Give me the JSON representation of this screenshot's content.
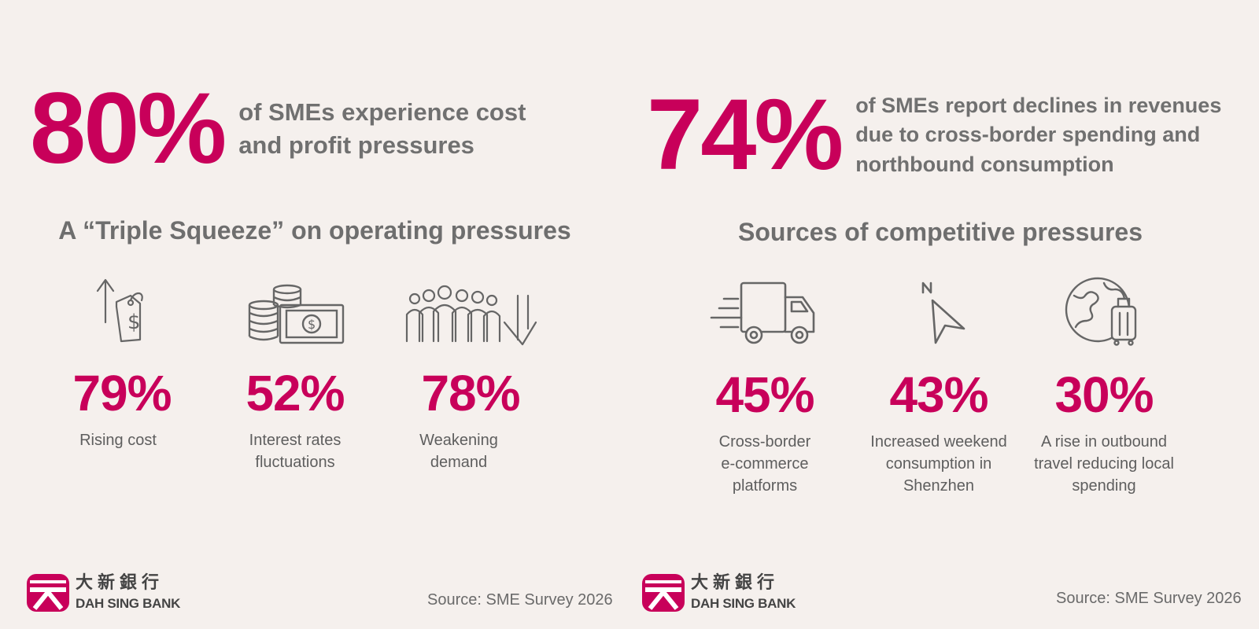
{
  "left": {
    "headline": {
      "pct": "80%",
      "text": "of SMEs experience cost\nand profit pressures"
    },
    "section_title": "A “Triple Squeeze” on operating pressures",
    "stats": [
      {
        "pct": "79%",
        "label": "Rising cost",
        "icon": "price-tag-up-icon"
      },
      {
        "pct": "52%",
        "label": "Interest rates\nfluctuations",
        "icon": "coins-cash-icon"
      },
      {
        "pct": "78%",
        "label": "Weakening\ndemand",
        "icon": "crowd-down-icon"
      }
    ],
    "logo": {
      "cn": "大新銀行",
      "en": "DAH SING BANK"
    },
    "source": "Source: SME Survey 2026"
  },
  "right": {
    "headline": {
      "pct": "74%",
      "text": "of SMEs report declines in revenues\ndue to cross-border spending and\nnorthbound consumption"
    },
    "section_title": "Sources of competitive pressures",
    "stats": [
      {
        "pct": "45%",
        "label": "Cross-border\ne-commerce\nplatforms",
        "icon": "delivery-truck-icon"
      },
      {
        "pct": "43%",
        "label": "Increased weekend\nconsumption in\nShenzhen",
        "icon": "north-arrow-icon"
      },
      {
        "pct": "30%",
        "label": "A rise in outbound\ntravel reducing local\nspending",
        "icon": "globe-luggage-icon"
      }
    ],
    "logo": {
      "cn": "大新銀行",
      "en": "DAH SING BANK"
    },
    "source": "Source: SME Survey 2026"
  },
  "colors": {
    "accent": "#c8005a",
    "text": "#6b6b6b",
    "background": "#f5f0ed"
  }
}
